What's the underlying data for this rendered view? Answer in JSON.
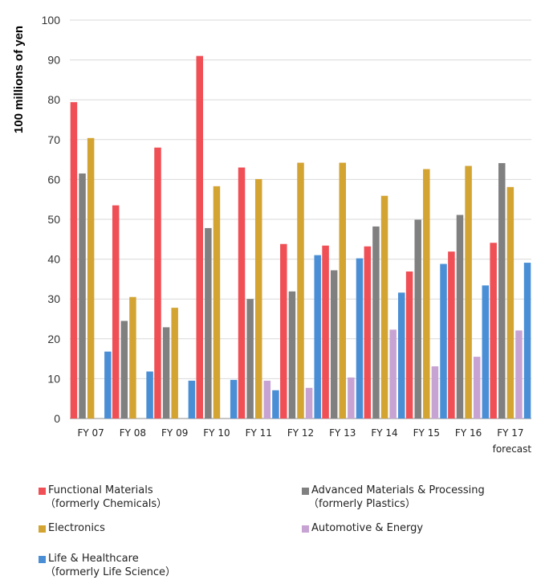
{
  "chart_data": {
    "type": "bar",
    "title": "",
    "xlabel": "",
    "ylabel": "100 millions of yen",
    "ylim": [
      0,
      100
    ],
    "yticks": [
      0,
      10,
      20,
      30,
      40,
      50,
      60,
      70,
      80,
      90,
      100
    ],
    "grid": true,
    "legend_position": "bottom",
    "categories": [
      "FY 07",
      "FY 08",
      "FY 09",
      "FY 10",
      "FY 11",
      "FY 12",
      "FY 13",
      "FY 14",
      "FY 15",
      "FY 16",
      "FY 17"
    ],
    "category_sublabels": [
      "",
      "",
      "",
      "",
      "",
      "",
      "",
      "",
      "",
      "",
      "forecast"
    ],
    "series": [
      {
        "name": "Functional Materials",
        "note": "（formerly Chemicals）",
        "color": "#ef4f55",
        "values": [
          79.4,
          53.5,
          68.0,
          91.0,
          63.0,
          43.8,
          43.4,
          43.2,
          36.9,
          41.9,
          44.1
        ]
      },
      {
        "name": "Advanced Materials & Processing",
        "note": "（formerly Plastics）",
        "color": "#808080",
        "values": [
          61.5,
          24.5,
          22.9,
          47.8,
          30.0,
          31.9,
          37.2,
          48.2,
          49.9,
          51.1,
          64.1
        ]
      },
      {
        "name": "Electronics",
        "note": "",
        "color": "#d4a433",
        "values": [
          70.4,
          30.5,
          27.8,
          58.3,
          60.1,
          64.2,
          64.2,
          55.9,
          62.6,
          63.4,
          58.1
        ]
      },
      {
        "name": "Automotive & Energy",
        "note": "",
        "color": "#c7a3d3",
        "values": [
          null,
          null,
          null,
          null,
          9.5,
          7.7,
          10.3,
          22.3,
          13.1,
          15.5,
          22.1
        ]
      },
      {
        "name": "Life & Healthcare",
        "note": "（formerly Life Science）",
        "color": "#4a8fd6",
        "values": [
          16.8,
          11.8,
          9.5,
          9.7,
          7.1,
          41.0,
          40.2,
          31.6,
          38.8,
          33.4,
          39.1
        ]
      }
    ]
  }
}
